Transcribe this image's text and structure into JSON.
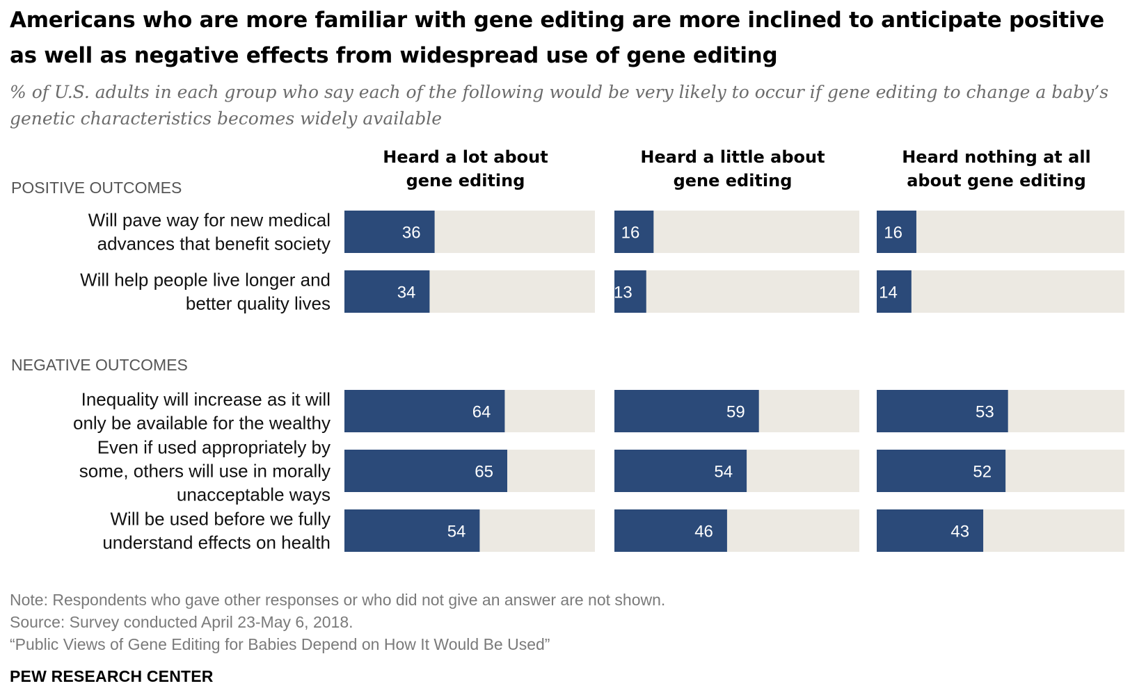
{
  "header": {
    "title": "Americans who are more familiar with gene editing are more inclined to anticipate positive as well as negative effects from widespread use of gene editing",
    "subtitle": "% of U.S. adults in each group who say each of the following would be very likely to occur if gene editing to change a baby’s genetic characteristics becomes widely available"
  },
  "footer": {
    "note": "Note: Respondents who gave other responses or who did not give an answer are not shown.",
    "source": "Source: Survey conducted April 23-May 6, 2018.",
    "report": "“Public Views of Gene Editing for Babies Depend on How It Would Be Used”",
    "brand": "PEW RESEARCH CENTER"
  },
  "colors": {
    "bar": "#2b4a79",
    "track": "#ece9e2",
    "bar_label": "#ffffff",
    "section_label": "#555555"
  },
  "chart_data": {
    "type": "bar",
    "orientation": "horizontal",
    "xlim": [
      0,
      100
    ],
    "panels": [
      [
        "Heard a lot about",
        "gene editing"
      ],
      [
        "Heard a little about",
        "gene editing"
      ],
      [
        "Heard nothing at all",
        "about gene editing"
      ]
    ],
    "groups": [
      {
        "name": "POSITIVE OUTCOMES",
        "items": [
          {
            "label": [
              "Will pave way for new medical",
              "advances that benefit society"
            ],
            "values": [
              36,
              16,
              16
            ]
          },
          {
            "label": [
              "Will help people live longer and",
              "better quality lives"
            ],
            "values": [
              34,
              13,
              14
            ]
          }
        ]
      },
      {
        "name": "NEGATIVE OUTCOMES",
        "items": [
          {
            "label": [
              "Inequality will increase as it will",
              "only be available for the wealthy"
            ],
            "values": [
              64,
              59,
              53
            ]
          },
          {
            "label": [
              "Even if used appropriately by",
              "some, others will use in morally",
              "unacceptable ways"
            ],
            "values": [
              65,
              54,
              52
            ]
          },
          {
            "label": [
              "Will be used before we fully",
              "understand effects on health"
            ],
            "values": [
              54,
              46,
              43
            ]
          }
        ]
      }
    ]
  }
}
